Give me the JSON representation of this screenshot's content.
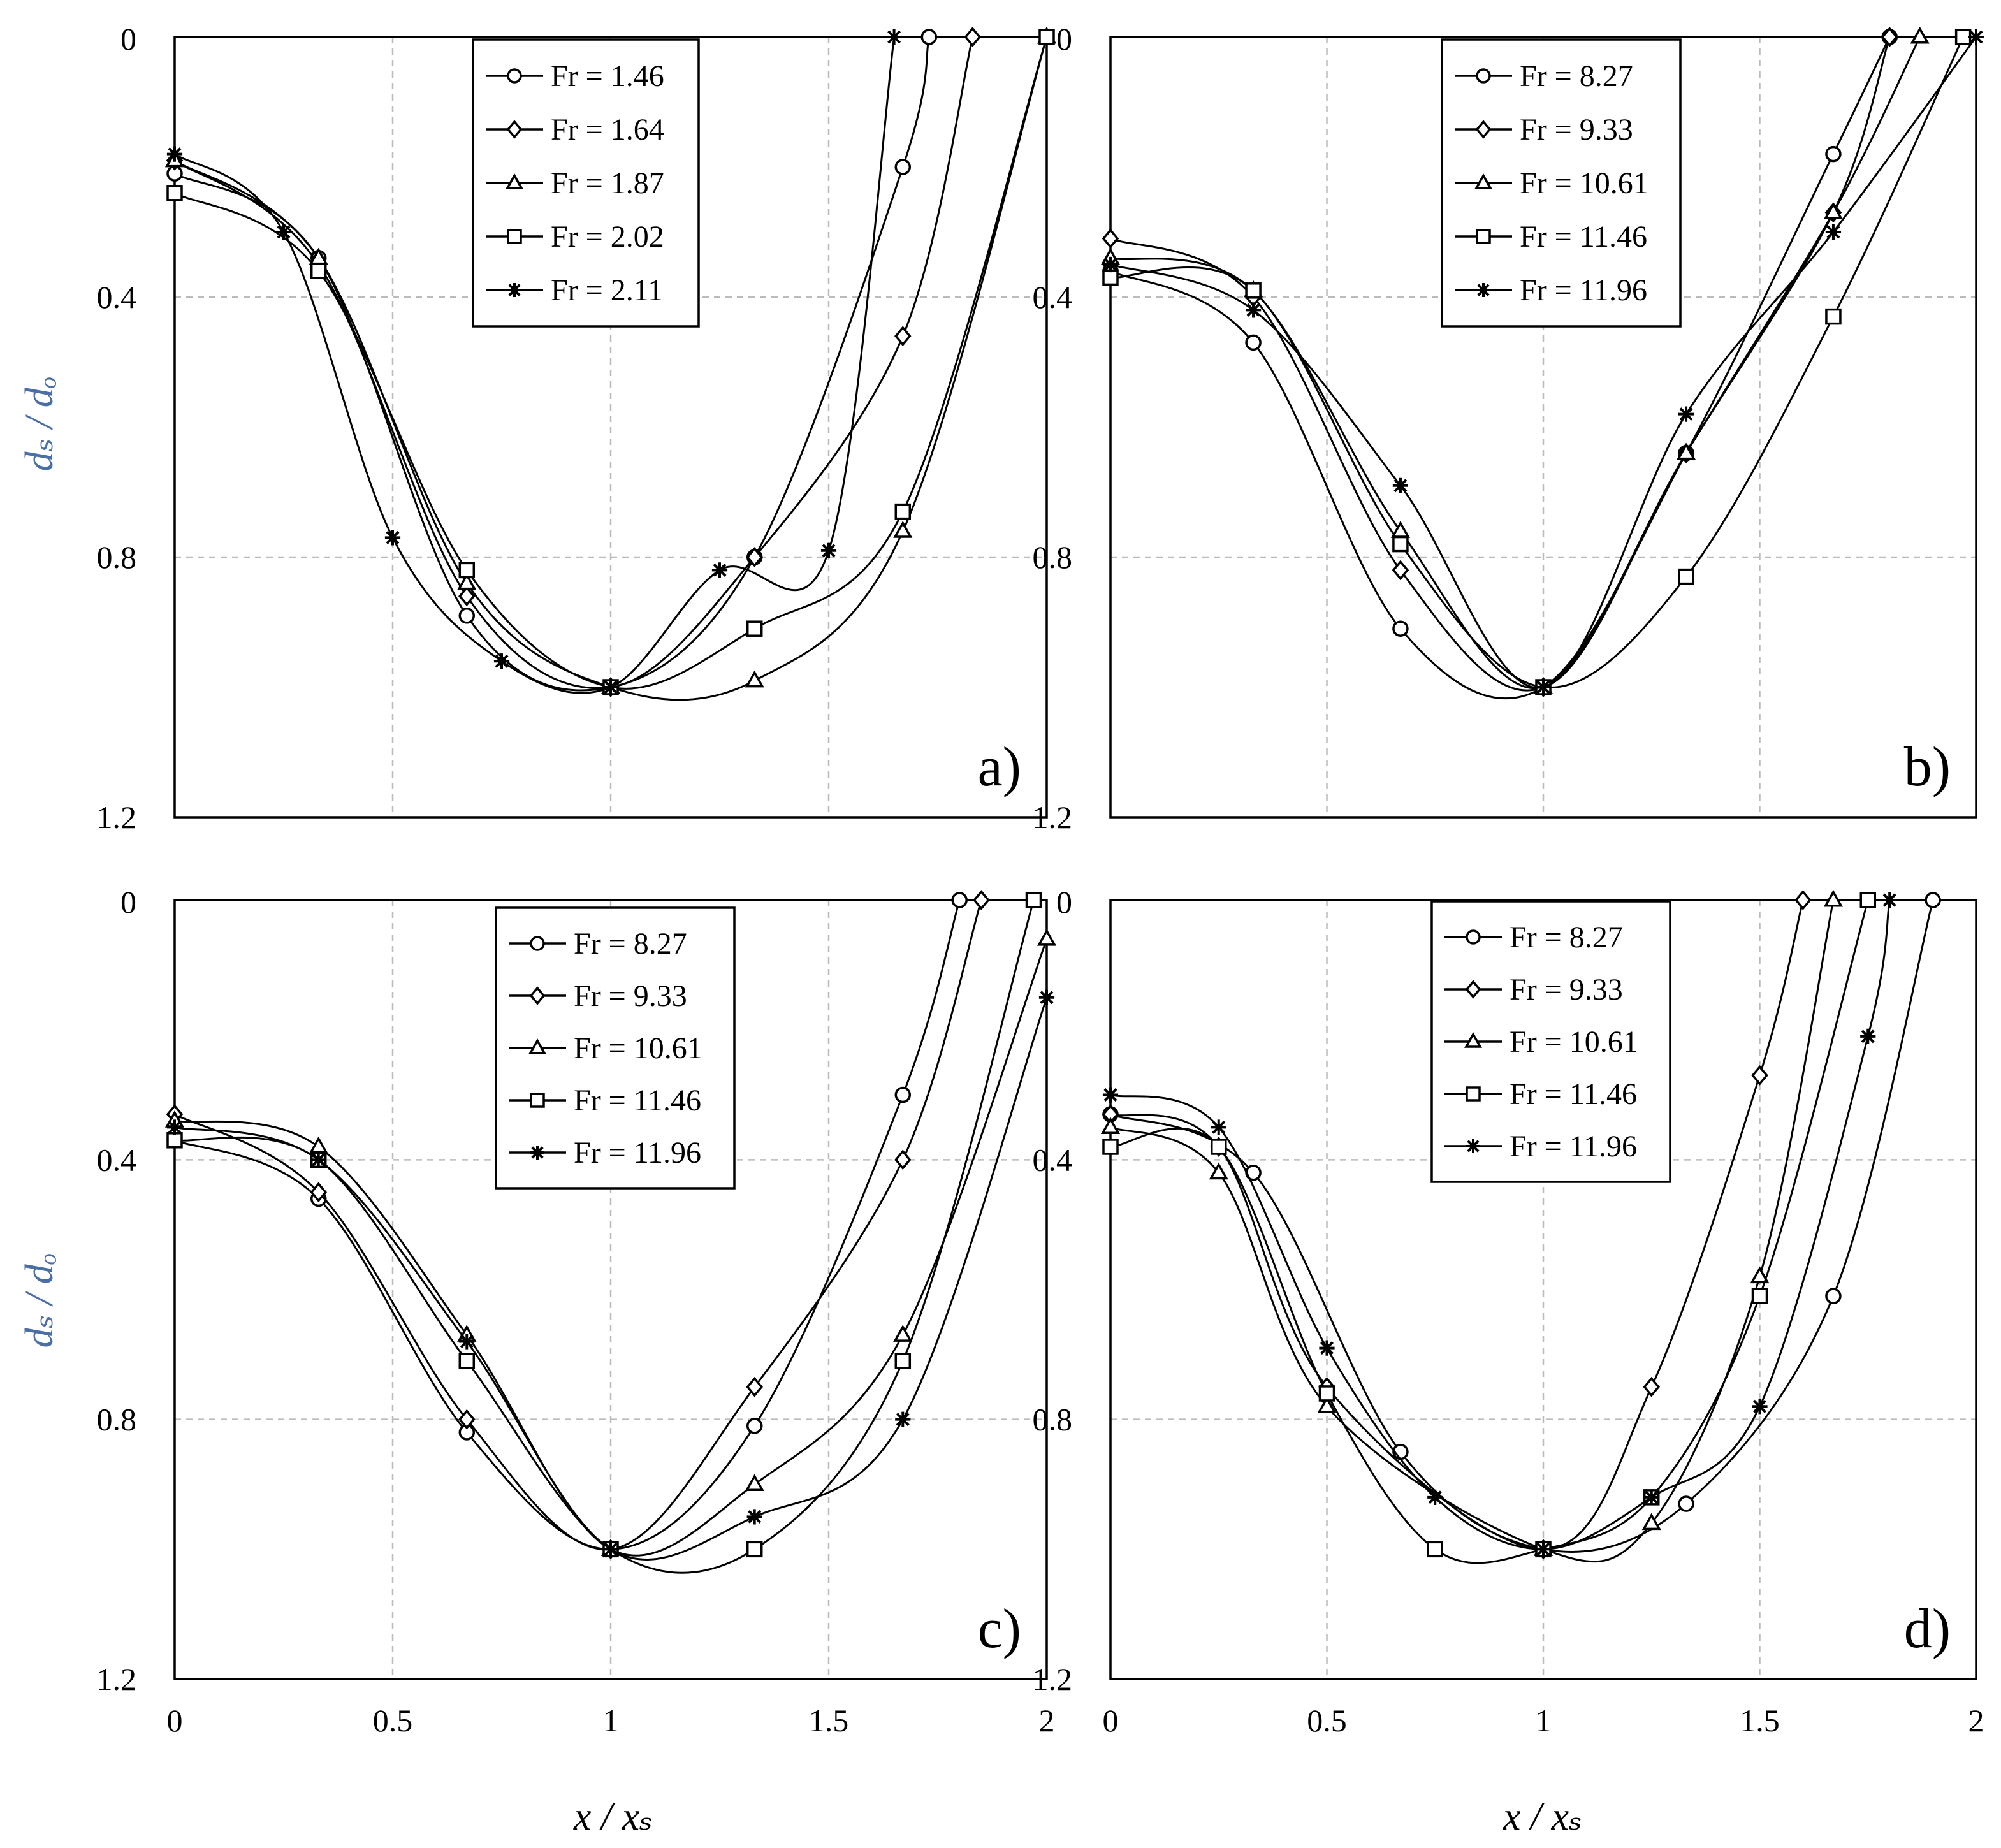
{
  "figure": {
    "xlabel": "x / xₛ",
    "ylabel": "dₛ / dₒ",
    "ylabel_color": "#4a6fa5",
    "line_color": "#000000",
    "grid_color": "#bbbbbb"
  },
  "chart_data": [
    {
      "type": "line",
      "panel_label": "a)",
      "xlim": [
        0,
        2
      ],
      "ylim": [
        0,
        1.2
      ],
      "y_inverted": true,
      "x_ticks": [
        "0",
        "0.5",
        "1",
        "1.5",
        "2"
      ],
      "y_ticks": [
        "0",
        "0.4",
        "0.8",
        "1.2"
      ],
      "legend_position": "top-center",
      "series": [
        {
          "name": "Fr = 1.46",
          "label_text": "Fr = 1.46",
          "marker": "circle",
          "x": [
            0,
            0.33,
            0.67,
            1.0,
            1.33,
            1.67,
            1.73
          ],
          "y": [
            0.21,
            0.34,
            0.89,
            1.0,
            0.8,
            0.2,
            0.0
          ]
        },
        {
          "name": "Fr = 1.64",
          "label_text": "Fr = 1.64",
          "marker": "diamond",
          "x": [
            0,
            0.33,
            0.67,
            1.0,
            1.33,
            1.67,
            1.83
          ],
          "y": [
            0.19,
            0.35,
            0.86,
            1.0,
            0.8,
            0.46,
            0.0
          ]
        },
        {
          "name": "Fr = 1.87",
          "label_text": "Fr = 1.87",
          "marker": "triangle",
          "x": [
            0,
            0.33,
            0.67,
            1.0,
            1.33,
            1.67,
            2.0
          ],
          "y": [
            0.19,
            0.34,
            0.84,
            1.0,
            0.99,
            0.76,
            0.0
          ]
        },
        {
          "name": "Fr = 2.02",
          "label_text": "Fr = 2.02",
          "marker": "square",
          "x": [
            0,
            0.33,
            0.67,
            1.0,
            1.33,
            1.67,
            2.0
          ],
          "y": [
            0.24,
            0.36,
            0.82,
            1.0,
            0.91,
            0.73,
            0.0
          ]
        },
        {
          "name": "Fr = 2.11",
          "label_text": "Fr = 2.11",
          "marker": "star",
          "x": [
            0,
            0.25,
            0.5,
            0.75,
            1.0,
            1.25,
            1.5,
            1.65
          ],
          "y": [
            0.18,
            0.3,
            0.77,
            0.96,
            1.0,
            0.82,
            0.79,
            0.0
          ]
        }
      ]
    },
    {
      "type": "line",
      "panel_label": "b)",
      "xlim": [
        0,
        2
      ],
      "ylim": [
        0,
        1.2
      ],
      "y_inverted": true,
      "x_ticks": [
        "0",
        "0.5",
        "1",
        "1.5",
        "2"
      ],
      "y_ticks": [
        "0",
        "0.4",
        "0.8",
        "1.2"
      ],
      "legend_position": "top-center",
      "series": [
        {
          "name": "Fr = 8.27",
          "label_text": "Fr = 8.27",
          "marker": "circle",
          "x": [
            0,
            0.33,
            0.67,
            1.0,
            1.33,
            1.67,
            1.8
          ],
          "y": [
            0.36,
            0.47,
            0.91,
            1.0,
            0.64,
            0.18,
            0.0
          ]
        },
        {
          "name": "Fr = 9.33",
          "label_text": "Fr = 9.33",
          "marker": "diamond",
          "x": [
            0,
            0.33,
            0.67,
            1.0,
            1.33,
            1.67,
            1.8
          ],
          "y": [
            0.31,
            0.4,
            0.82,
            1.0,
            0.64,
            0.27,
            0.0
          ]
        },
        {
          "name": "Fr = 10.61",
          "label_text": "Fr = 10.61",
          "marker": "triangle",
          "x": [
            0,
            0.33,
            0.67,
            1.0,
            1.33,
            1.67,
            1.87
          ],
          "y": [
            0.34,
            0.39,
            0.76,
            1.0,
            0.64,
            0.27,
            0.0
          ]
        },
        {
          "name": "Fr = 11.46",
          "label_text": "Fr = 11.46",
          "marker": "square",
          "x": [
            0,
            0.33,
            0.67,
            1.0,
            1.33,
            1.67,
            1.97
          ],
          "y": [
            0.37,
            0.39,
            0.78,
            1.0,
            0.83,
            0.43,
            0.0
          ]
        },
        {
          "name": "Fr = 11.96",
          "label_text": "Fr = 11.96",
          "marker": "star",
          "x": [
            0,
            0.33,
            0.67,
            1.0,
            1.33,
            1.67,
            2.0
          ],
          "y": [
            0.35,
            0.42,
            0.69,
            1.0,
            0.58,
            0.3,
            0.0
          ]
        }
      ]
    },
    {
      "type": "line",
      "panel_label": "c)",
      "xlim": [
        0,
        2
      ],
      "ylim": [
        0,
        1.2
      ],
      "y_inverted": true,
      "x_ticks": [
        "0",
        "0.5",
        "1",
        "1.5",
        "2"
      ],
      "y_ticks": [
        "0",
        "0.4",
        "0.8",
        "1.2"
      ],
      "legend_position": "top-center",
      "series": [
        {
          "name": "Fr = 8.27",
          "label_text": "Fr = 8.27",
          "marker": "circle",
          "x": [
            0,
            0.33,
            0.67,
            1.0,
            1.33,
            1.67,
            1.8
          ],
          "y": [
            0.37,
            0.46,
            0.82,
            1.0,
            0.81,
            0.3,
            0.0
          ]
        },
        {
          "name": "Fr = 9.33",
          "label_text": "Fr = 9.33",
          "marker": "diamond",
          "x": [
            0,
            0.33,
            0.67,
            1.0,
            1.33,
            1.67,
            1.85
          ],
          "y": [
            0.33,
            0.45,
            0.8,
            1.0,
            0.75,
            0.4,
            0.0
          ]
        },
        {
          "name": "Fr = 10.61",
          "label_text": "Fr = 10.61",
          "marker": "triangle",
          "x": [
            0,
            0.33,
            0.67,
            1.0,
            1.33,
            1.67,
            2.0
          ],
          "y": [
            0.34,
            0.38,
            0.67,
            1.0,
            0.9,
            0.67,
            0.06
          ]
        },
        {
          "name": "Fr = 11.46",
          "label_text": "Fr = 11.46",
          "marker": "square",
          "x": [
            0,
            0.33,
            0.67,
            1.0,
            1.33,
            1.67,
            1.97
          ],
          "y": [
            0.37,
            0.4,
            0.71,
            1.0,
            1.0,
            0.71,
            0.0
          ]
        },
        {
          "name": "Fr = 11.96",
          "label_text": "Fr = 11.96",
          "marker": "star",
          "x": [
            0,
            0.33,
            0.67,
            1.0,
            1.33,
            1.67,
            2.0
          ],
          "y": [
            0.35,
            0.4,
            0.68,
            1.0,
            0.95,
            0.8,
            0.15
          ]
        }
      ]
    },
    {
      "type": "line",
      "panel_label": "d)",
      "xlim": [
        0,
        2
      ],
      "ylim": [
        0,
        1.2
      ],
      "y_inverted": true,
      "x_ticks": [
        "0",
        "0.5",
        "1",
        "1.5",
        "2"
      ],
      "y_ticks": [
        "0",
        "0.4",
        "0.8",
        "1.2"
      ],
      "legend_position": "top-center",
      "series": [
        {
          "name": "Fr = 8.27",
          "label_text": "Fr = 8.27",
          "marker": "circle",
          "x": [
            0,
            0.33,
            0.67,
            1.0,
            1.33,
            1.67,
            1.9
          ],
          "y": [
            0.33,
            0.42,
            0.85,
            1.0,
            0.93,
            0.61,
            0.0
          ]
        },
        {
          "name": "Fr = 9.33",
          "label_text": "Fr = 9.33",
          "marker": "diamond",
          "x": [
            0,
            0.25,
            0.5,
            1.0,
            1.25,
            1.5,
            1.6
          ],
          "y": [
            0.33,
            0.38,
            0.75,
            1.0,
            0.75,
            0.27,
            0.0
          ]
        },
        {
          "name": "Fr = 10.61",
          "label_text": "Fr = 10.61",
          "marker": "triangle",
          "x": [
            0,
            0.25,
            0.5,
            1.0,
            1.25,
            1.5,
            1.67
          ],
          "y": [
            0.35,
            0.42,
            0.78,
            1.0,
            0.96,
            0.58,
            0.0
          ]
        },
        {
          "name": "Fr = 11.46",
          "label_text": "Fr = 11.46",
          "marker": "square",
          "x": [
            0,
            0.25,
            0.5,
            0.75,
            1.0,
            1.25,
            1.5,
            1.75
          ],
          "y": [
            0.38,
            0.38,
            0.76,
            1.0,
            1.0,
            0.92,
            0.61,
            0.0
          ]
        },
        {
          "name": "Fr = 11.96",
          "label_text": "Fr = 11.96",
          "marker": "star",
          "x": [
            0,
            0.25,
            0.5,
            0.75,
            1.0,
            1.25,
            1.5,
            1.75,
            1.8
          ],
          "y": [
            0.3,
            0.35,
            0.69,
            0.92,
            1.0,
            0.92,
            0.78,
            0.21,
            0.0
          ]
        }
      ]
    }
  ]
}
